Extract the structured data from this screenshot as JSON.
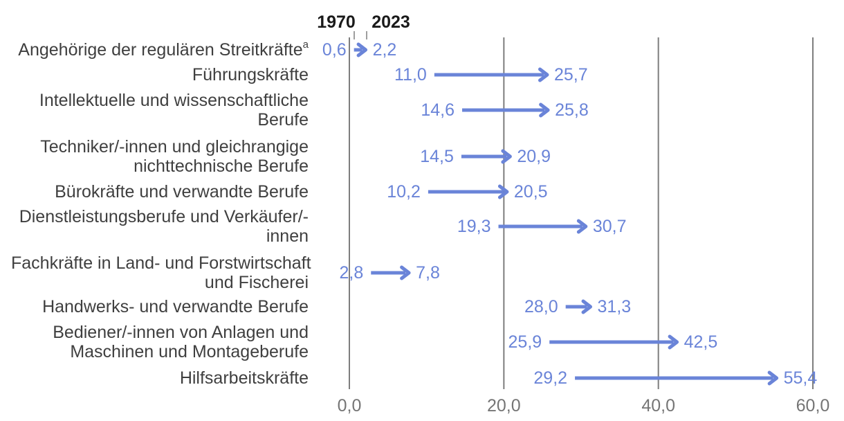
{
  "chart_data": {
    "type": "arrow",
    "description": "Dumbbell/arrow chart comparing values per occupational group between 1970 and 2023",
    "series_labels": [
      "1970",
      "2023"
    ],
    "x_ticks": [
      {
        "value": 0,
        "label": "0,0"
      },
      {
        "value": 20,
        "label": "20,0"
      },
      {
        "value": 40,
        "label": "40,0"
      },
      {
        "value": 60,
        "label": "60,0"
      }
    ],
    "xlim": [
      0,
      60
    ],
    "grid": true,
    "rows": [
      {
        "label_lines": [
          "Angehörige der regulären Streitkräfte"
        ],
        "sup": "a",
        "start": 0.6,
        "end": 2.2,
        "start_label": "0,6",
        "end_label": "2,2"
      },
      {
        "label_lines": [
          "Führungskräfte"
        ],
        "start": 11.0,
        "end": 25.7,
        "start_label": "11,0",
        "end_label": "25,7"
      },
      {
        "label_lines": [
          "Intellektuelle und wissenschaftliche",
          "Berufe"
        ],
        "start": 14.6,
        "end": 25.8,
        "start_label": "14,6",
        "end_label": "25,8"
      },
      {
        "label_lines": [
          "Techniker/-innen und gleichrangige",
          "nichttechnische Berufe"
        ],
        "start": 14.5,
        "end": 20.9,
        "start_label": "14,5",
        "end_label": "20,9"
      },
      {
        "label_lines": [
          "Bürokräfte und verwandte Berufe"
        ],
        "start": 10.2,
        "end": 20.5,
        "start_label": "10,2",
        "end_label": "20,5"
      },
      {
        "label_lines": [
          "Dienstleistungsberufe und Verkäufer/-",
          "innen"
        ],
        "start": 19.3,
        "end": 30.7,
        "start_label": "19,3",
        "end_label": "30,7"
      },
      {
        "label_lines": [
          "Fachkräfte in Land- und Forstwirtschaft",
          "und Fischerei"
        ],
        "start": 2.8,
        "end": 7.8,
        "start_label": "2,8",
        "end_label": "7,8"
      },
      {
        "label_lines": [
          "Handwerks- und verwandte Berufe"
        ],
        "start": 28.0,
        "end": 31.3,
        "start_label": "28,0",
        "end_label": "31,3"
      },
      {
        "label_lines": [
          "Bediener/-innen von Anlagen und",
          "Maschinen und Montageberufe"
        ],
        "start": 25.9,
        "end": 42.5,
        "start_label": "25,9",
        "end_label": "42,5"
      },
      {
        "label_lines": [
          "Hilfsarbeitskräfte"
        ],
        "start": 29.2,
        "end": 55.4,
        "start_label": "29,2",
        "end_label": "55,4"
      }
    ],
    "colors": {
      "arrow": "#6a84d8",
      "value_text": "#6a84d8",
      "category_text": "#3f3f3f",
      "gridline": "#7d7d7d",
      "axis_text": "#757575",
      "header_text": "#1a1a1a",
      "leader_tick": "#9e9e9e"
    }
  }
}
